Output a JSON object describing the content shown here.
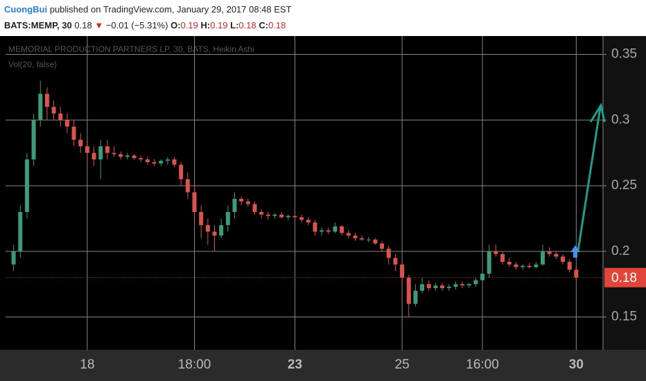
{
  "header": {
    "user": "CuongBui",
    "published": "published on TradingView.com, January 29, 2017 08:48 EST",
    "symbol": "BATS:MEMP, 30",
    "price": "0.18",
    "arrow": "▼",
    "change": "−0.01 (−5.31%)",
    "o_label": "O:",
    "o": "0.19",
    "h_label": "H:",
    "h": "0.19",
    "l_label": "L:",
    "l": "0.18",
    "c_label": "C:",
    "c": "0.18"
  },
  "chart_data": {
    "type": "candlestick",
    "title": "MEMORIAL PRODUCTION PARTNERS LP, 30, BATS, Heikin Ashi",
    "indicator": "Vol(20, false)",
    "up_color": "#3f9a7a",
    "down_color": "#d9534f",
    "ylim": [
      0.125,
      0.364
    ],
    "yticks": [
      0.15,
      0.2,
      0.25,
      0.3,
      0.35
    ],
    "grid": true,
    "xlim": [
      -1.2,
      88
    ],
    "xticks": [
      {
        "value": 11,
        "label": "18"
      },
      {
        "value": 27,
        "label": "18:00"
      },
      {
        "value": 42,
        "label": "23",
        "bold": true
      },
      {
        "value": 58,
        "label": "25"
      },
      {
        "value": 70,
        "label": "16:00"
      },
      {
        "value": 84,
        "label": "30",
        "bold": true
      }
    ],
    "last_price": 0.18,
    "candles": [
      [
        0.19,
        0.205,
        0.185,
        0.2
      ],
      [
        0.2,
        0.235,
        0.195,
        0.23
      ],
      [
        0.23,
        0.275,
        0.225,
        0.27
      ],
      [
        0.27,
        0.305,
        0.265,
        0.3
      ],
      [
        0.3,
        0.33,
        0.295,
        0.32
      ],
      [
        0.32,
        0.325,
        0.3,
        0.31
      ],
      [
        0.31,
        0.315,
        0.3,
        0.305
      ],
      [
        0.305,
        0.31,
        0.295,
        0.3
      ],
      [
        0.3,
        0.305,
        0.29,
        0.295
      ],
      [
        0.295,
        0.3,
        0.28,
        0.285
      ],
      [
        0.285,
        0.29,
        0.275,
        0.28
      ],
      [
        0.28,
        0.285,
        0.27,
        0.275
      ],
      [
        0.275,
        0.28,
        0.265,
        0.27
      ],
      [
        0.27,
        0.285,
        0.255,
        0.28
      ],
      [
        0.28,
        0.285,
        0.27,
        0.275
      ],
      [
        0.275,
        0.28,
        0.272,
        0.274
      ],
      [
        0.274,
        0.276,
        0.27,
        0.272
      ],
      [
        0.272,
        0.275,
        0.27,
        0.273
      ],
      [
        0.273,
        0.274,
        0.27,
        0.271
      ],
      [
        0.271,
        0.273,
        0.268,
        0.27
      ],
      [
        0.27,
        0.272,
        0.266,
        0.268
      ],
      [
        0.268,
        0.27,
        0.265,
        0.267
      ],
      [
        0.267,
        0.27,
        0.265,
        0.269
      ],
      [
        0.269,
        0.272,
        0.266,
        0.27
      ],
      [
        0.27,
        0.272,
        0.264,
        0.266
      ],
      [
        0.266,
        0.268,
        0.25,
        0.255
      ],
      [
        0.255,
        0.26,
        0.24,
        0.245
      ],
      [
        0.245,
        0.25,
        0.225,
        0.23
      ],
      [
        0.23,
        0.235,
        0.21,
        0.22
      ],
      [
        0.22,
        0.225,
        0.205,
        0.215
      ],
      [
        0.215,
        0.22,
        0.2,
        0.212
      ],
      [
        0.212,
        0.225,
        0.21,
        0.22
      ],
      [
        0.22,
        0.235,
        0.215,
        0.23
      ],
      [
        0.23,
        0.245,
        0.225,
        0.24
      ],
      [
        0.24,
        0.242,
        0.235,
        0.238
      ],
      [
        0.238,
        0.24,
        0.234,
        0.236
      ],
      [
        0.236,
        0.238,
        0.228,
        0.23
      ],
      [
        0.23,
        0.232,
        0.225,
        0.228
      ],
      [
        0.228,
        0.23,
        0.224,
        0.227
      ],
      [
        0.227,
        0.229,
        0.225,
        0.228
      ],
      [
        0.228,
        0.23,
        0.225,
        0.226
      ],
      [
        0.226,
        0.228,
        0.224,
        0.227
      ],
      [
        0.227,
        0.228,
        0.225,
        0.226
      ],
      [
        0.226,
        0.228,
        0.222,
        0.224
      ],
      [
        0.224,
        0.226,
        0.22,
        0.222
      ],
      [
        0.222,
        0.224,
        0.212,
        0.215
      ],
      [
        0.215,
        0.218,
        0.212,
        0.216
      ],
      [
        0.216,
        0.218,
        0.213,
        0.215
      ],
      [
        0.215,
        0.222,
        0.214,
        0.219
      ],
      [
        0.219,
        0.22,
        0.212,
        0.214
      ],
      [
        0.214,
        0.216,
        0.21,
        0.212
      ],
      [
        0.212,
        0.214,
        0.208,
        0.21
      ],
      [
        0.21,
        0.212,
        0.208,
        0.209
      ],
      [
        0.209,
        0.211,
        0.207,
        0.209
      ],
      [
        0.209,
        0.21,
        0.205,
        0.206
      ],
      [
        0.206,
        0.208,
        0.2,
        0.202
      ],
      [
        0.202,
        0.204,
        0.19,
        0.195
      ],
      [
        0.195,
        0.198,
        0.185,
        0.19
      ],
      [
        0.19,
        0.192,
        0.175,
        0.18
      ],
      [
        0.18,
        0.182,
        0.15,
        0.16
      ],
      [
        0.16,
        0.175,
        0.158,
        0.17
      ],
      [
        0.17,
        0.18,
        0.168,
        0.175
      ],
      [
        0.175,
        0.178,
        0.17,
        0.172
      ],
      [
        0.172,
        0.176,
        0.17,
        0.174
      ],
      [
        0.174,
        0.176,
        0.17,
        0.172
      ],
      [
        0.172,
        0.175,
        0.17,
        0.173
      ],
      [
        0.173,
        0.177,
        0.171,
        0.175
      ],
      [
        0.175,
        0.177,
        0.172,
        0.174
      ],
      [
        0.174,
        0.176,
        0.172,
        0.175
      ],
      [
        0.175,
        0.18,
        0.173,
        0.178
      ],
      [
        0.178,
        0.185,
        0.176,
        0.183
      ],
      [
        0.183,
        0.205,
        0.18,
        0.2
      ],
      [
        0.2,
        0.205,
        0.196,
        0.198
      ],
      [
        0.198,
        0.2,
        0.19,
        0.192
      ],
      [
        0.192,
        0.195,
        0.188,
        0.19
      ],
      [
        0.19,
        0.192,
        0.186,
        0.188
      ],
      [
        0.188,
        0.19,
        0.186,
        0.189
      ],
      [
        0.189,
        0.191,
        0.187,
        0.188
      ],
      [
        0.188,
        0.192,
        0.187,
        0.19
      ],
      [
        0.19,
        0.205,
        0.189,
        0.2
      ],
      [
        0.2,
        0.203,
        0.196,
        0.198
      ],
      [
        0.198,
        0.2,
        0.194,
        0.196
      ],
      [
        0.196,
        0.198,
        0.19,
        0.192
      ],
      [
        0.192,
        0.194,
        0.184,
        0.186
      ],
      [
        0.186,
        0.188,
        0.178,
        0.18
      ]
    ]
  }
}
